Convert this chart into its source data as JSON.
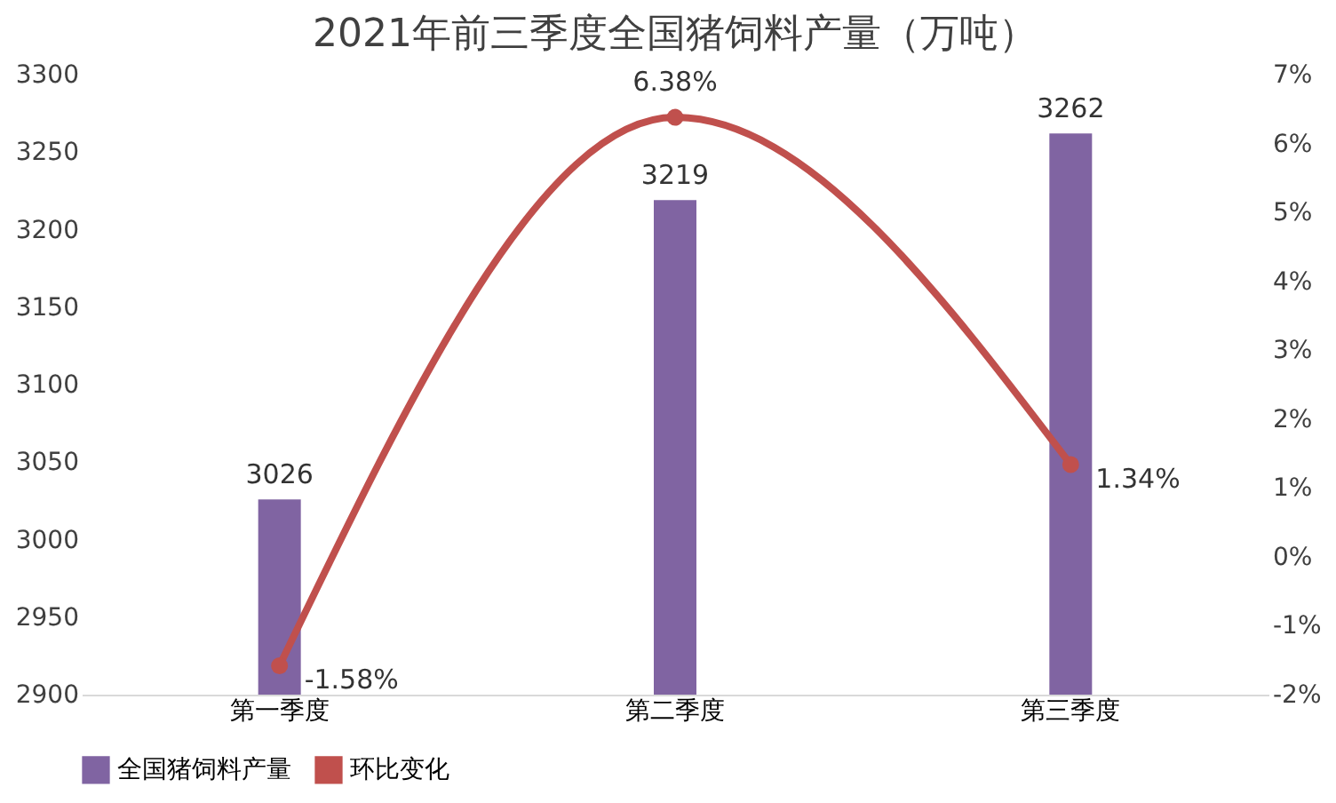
{
  "chart_data": {
    "type": "bar",
    "title": "2021年前三季度全国猪饲料产量（万吨）",
    "categories": [
      "第一季度",
      "第二季度",
      "第三季度"
    ],
    "series": [
      {
        "name": "全国猪饲料产量",
        "color": "#8064a2",
        "values": [
          3026,
          3219,
          3262
        ],
        "value_labels": [
          "3026",
          "3219",
          "3262"
        ]
      },
      {
        "name": "环比变化",
        "type": "line",
        "axis": "y2",
        "color": "#c0504d",
        "values": [
          -1.58,
          6.38,
          1.34
        ],
        "value_labels": [
          "-1.58%",
          "6.38%",
          "1.34%"
        ]
      }
    ],
    "ylim": [
      2900,
      3300
    ],
    "yticks": [
      2900,
      2950,
      3000,
      3050,
      3100,
      3150,
      3200,
      3250,
      3300
    ],
    "y2lim": [
      -2,
      7
    ],
    "y2ticks": [
      {
        "value": -2,
        "label": "-2%"
      },
      {
        "value": -1,
        "label": "-1%"
      },
      {
        "value": 0,
        "label": "0%"
      },
      {
        "value": 1,
        "label": "1%"
      },
      {
        "value": 2,
        "label": "2%"
      },
      {
        "value": 3,
        "label": "3%"
      },
      {
        "value": 4,
        "label": "4%"
      },
      {
        "value": 5,
        "label": "5%"
      },
      {
        "value": 6,
        "label": "6%"
      },
      {
        "value": 7,
        "label": "7%"
      }
    ],
    "marker": "circle",
    "legend": "bottom",
    "grid": false
  }
}
